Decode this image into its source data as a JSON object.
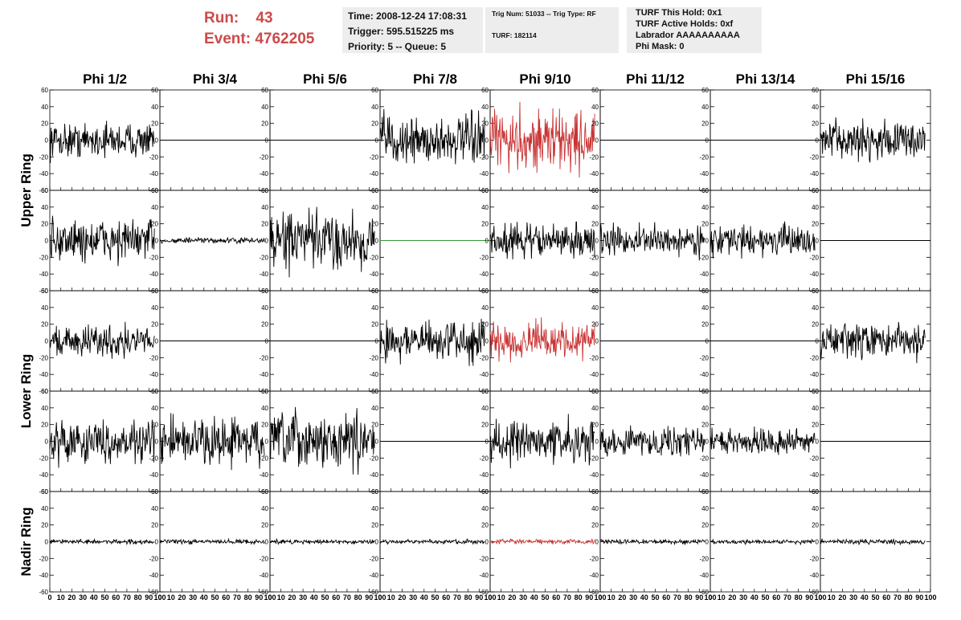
{
  "header": {
    "run_label": "Run:",
    "run_value": "43",
    "event_label": "Event:",
    "event_value": "4762205"
  },
  "info_time": {
    "line1": "Time: 2008-12-24 17:08:31",
    "line2": "Trigger: 595.515225 ms",
    "line3": "Priority: 5 -- Queue: 5"
  },
  "info_trig": {
    "line1": "Trig Num: 51033 -- Trig Type: RF",
    "line2": "TURF: 182114"
  },
  "info_turf": {
    "line1": "TURF This Hold: 0x1",
    "line2": "TURF Active Holds: 0xf",
    "line3": "Labrador AAAAAAAAAA",
    "line4": "Phi Mask: 0"
  },
  "colors": {
    "header_text": "#cc4a4a",
    "trace_default": "#000000",
    "trace_highlight": "#c83232",
    "trace_flat_green": "#339933",
    "info_box": "#ededed"
  },
  "chart_data": {
    "type": "line",
    "columns": [
      "Phi 1/2",
      "Phi 3/4",
      "Phi 5/6",
      "Phi 7/8",
      "Phi 9/10",
      "Phi 11/12",
      "Phi 13/14",
      "Phi 15/16"
    ],
    "row_groups": [
      "Upper Ring",
      "Lower Ring",
      "Nadir Ring"
    ],
    "rows_per_group": [
      2,
      2,
      1
    ],
    "xlim": [
      0,
      100
    ],
    "ylim": [
      -60,
      60
    ],
    "x_ticks": [
      0,
      10,
      20,
      30,
      40,
      50,
      60,
      70,
      80,
      90,
      100
    ],
    "x_tick_labels": [
      "0",
      "10",
      "20",
      "30",
      "40",
      "50",
      "60",
      "70",
      "80",
      "90",
      "100"
    ],
    "y_ticks": [
      60,
      40,
      20,
      0,
      -20,
      -40,
      -60
    ],
    "y_tick_labels": [
      "60",
      "40",
      "20",
      "0",
      "-20",
      "-40",
      "-60"
    ],
    "trace_x_range": [
      0,
      95
    ],
    "panels": [
      [
        {
          "amplitude": 15,
          "color": "#000000"
        },
        {
          "amplitude": 0,
          "color": "#000000"
        },
        {
          "amplitude": 0,
          "color": "#000000"
        },
        {
          "amplitude": 22,
          "color": "#000000"
        },
        {
          "amplitude": 28,
          "color": "#c83232"
        },
        {
          "amplitude": 0,
          "color": "#000000"
        },
        {
          "amplitude": 0,
          "color": "#000000"
        },
        {
          "amplitude": 17,
          "color": "#000000"
        }
      ],
      [
        {
          "amplitude": 20,
          "color": "#000000"
        },
        {
          "amplitude": 2.5,
          "color": "#000000"
        },
        {
          "amplitude": 26,
          "color": "#000000"
        },
        {
          "amplitude": 0,
          "color": "#339933"
        },
        {
          "amplitude": 15,
          "color": "#000000"
        },
        {
          "amplitude": 13,
          "color": "#000000"
        },
        {
          "amplitude": 13,
          "color": "#000000"
        },
        {
          "amplitude": 0,
          "color": "#000000"
        }
      ],
      [
        {
          "amplitude": 14,
          "color": "#000000"
        },
        {
          "amplitude": 0,
          "color": "#000000"
        },
        {
          "amplitude": 0,
          "color": "#000000"
        },
        {
          "amplitude": 18,
          "color": "#000000"
        },
        {
          "amplitude": 16,
          "color": "#c83232"
        },
        {
          "amplitude": 0,
          "color": "#000000"
        },
        {
          "amplitude": 0,
          "color": "#000000"
        },
        {
          "amplitude": 15,
          "color": "#000000"
        }
      ],
      [
        {
          "amplitude": 18,
          "color": "#000000"
        },
        {
          "amplitude": 22,
          "color": "#000000"
        },
        {
          "amplitude": 24,
          "color": "#000000"
        },
        {
          "amplitude": 0,
          "color": "#000000"
        },
        {
          "amplitude": 18,
          "color": "#000000"
        },
        {
          "amplitude": 13,
          "color": "#000000"
        },
        {
          "amplitude": 11,
          "color": "#000000"
        },
        {
          "amplitude": 0,
          "color": "#000000"
        }
      ],
      [
        {
          "amplitude": 2,
          "color": "#000000"
        },
        {
          "amplitude": 2,
          "color": "#000000"
        },
        {
          "amplitude": 2,
          "color": "#000000"
        },
        {
          "amplitude": 2,
          "color": "#000000"
        },
        {
          "amplitude": 2,
          "color": "#c83232"
        },
        {
          "amplitude": 2,
          "color": "#000000"
        },
        {
          "amplitude": 2,
          "color": "#000000"
        },
        {
          "amplitude": 2,
          "color": "#000000"
        }
      ]
    ]
  }
}
